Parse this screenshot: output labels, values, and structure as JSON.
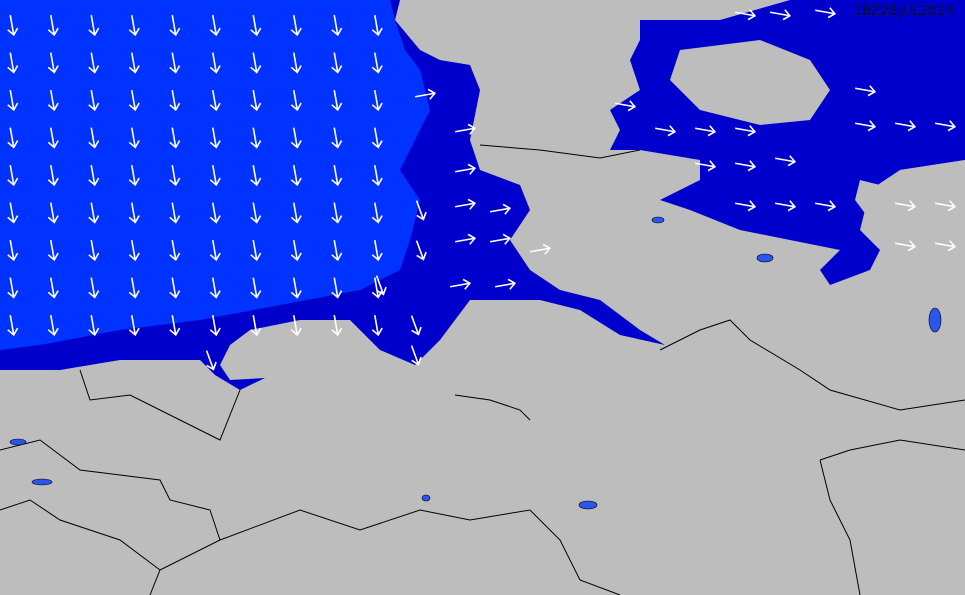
{
  "map": {
    "timestamp": "18Z28JUL2024",
    "colors": {
      "land": "#bdbdbd",
      "sea_high": "#0033ff",
      "sea_low": "#0000cc",
      "lake": "#2a55ee",
      "arrow": "#ffffff",
      "border": "#000000"
    },
    "arrow_fields": [
      {
        "region": "open-sea",
        "direction_deg": 170
      },
      {
        "region": "coastal-west",
        "direction_deg": 160
      },
      {
        "region": "coastal-east",
        "direction_deg": 80
      },
      {
        "region": "baltic",
        "direction_deg": 100
      }
    ]
  }
}
